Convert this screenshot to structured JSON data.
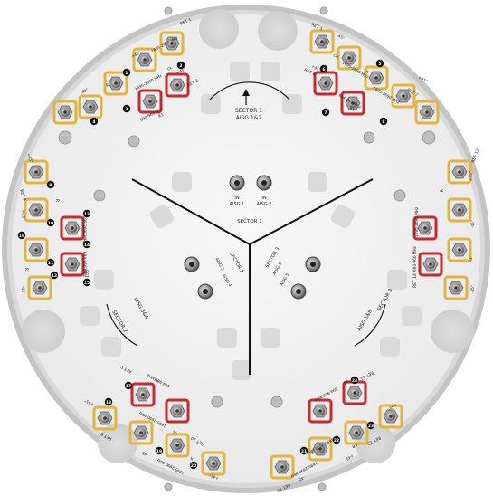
{
  "sector_1": {
    "label": "SECTOR 1",
    "aisg_label": "AISG 1&2",
    "ports": [
      {
        "port": "IN",
        "name": "AISG 1"
      },
      {
        "port": "IN",
        "name": "AISG 2"
      }
    ],
    "top_left_ports": [
      {
        "ret": "RET 1",
        "polarization": "+45°",
        "band": "1695-2690 MHz",
        "mark": "CL"
      },
      {
        "ret": "RET 2",
        "polarization": "-45°",
        "band": "1695-2690 MHz",
        "mark": "R"
      },
      {
        "ret": "RET 3",
        "polarization": "-45°",
        "band": "694-960 MHz",
        "mark": "R1"
      }
    ],
    "top_right_ports": [
      {
        "ret": "RET 5",
        "polarization": "-45°",
        "band": "1695-2690 MHz",
        "mark": "CR"
      },
      {
        "ret": "RET 6",
        "polarization": "+45°",
        "band": "1695-2690 MHz",
        "mark": "R"
      },
      {
        "ret": "RET 7",
        "polarization": "+45°",
        "band": "694-960 MHz",
        "mark": "R1"
      }
    ],
    "numbers": [
      "1",
      "2",
      "3",
      "4",
      "5",
      "6",
      "7",
      "8"
    ]
  },
  "sector_2": {
    "label": "SECTOR 2",
    "aisg_label": "AISG 3&4",
    "ports": [
      {
        "port": "IN",
        "name": "AISG 3"
      },
      {
        "port": "IN",
        "name": "AISG 4"
      }
    ],
    "side_ports": [
      {
        "ret": "RET 9",
        "polarization": "+45°",
        "band": "1695-2690 MHz",
        "mark": "CL"
      },
      {
        "ret": "RET 10",
        "polarization": "-45°",
        "band": "1695-2690 MHz",
        "mark": "R"
      },
      {
        "ret": "RET 11",
        "polarization": "+45°",
        "band": "694-960 MHz",
        "mark": "R1"
      }
    ],
    "numbers": [
      "9",
      "10",
      "11",
      "12",
      "13",
      "14",
      "15",
      "16"
    ]
  },
  "sector_3": {
    "label": "SECTOR 3",
    "aisg_label": "AISG 5&6",
    "ports": [
      {
        "port": "IN",
        "name": "AISG 5"
      },
      {
        "port": "IN",
        "name": "AISG 6"
      }
    ],
    "side_ports": [
      {
        "ret": "RET 12",
        "polarization": "+45°",
        "band": "1695-2690 MHz",
        "mark": "CR"
      },
      {
        "ret": "RET 13",
        "polarization": "-45°",
        "band": "1695-2690 MHz",
        "mark": "R"
      },
      {
        "ret": "RET 14",
        "polarization": "-45°",
        "band": "694-960 MHz",
        "mark": "R1"
      }
    ],
    "numbers": [
      "17",
      "18",
      "19",
      "20",
      "21",
      "22",
      "23",
      "24"
    ]
  },
  "bottom_left_ports": [
    {
      "ret": "RET 8",
      "polarization": "+45°",
      "band": "1695-2690 MHz",
      "mark": "CL"
    },
    {
      "ret": "RET 9",
      "polarization": "-45°",
      "band": "694-960 MHz",
      "mark": "R1"
    },
    {
      "ret": "RET 10",
      "polarization": "+45°",
      "band": "1695-2690 MHz",
      "mark": "R"
    }
  ],
  "bottom_right_ports": [
    {
      "ret": "RET 11",
      "polarization": "+45°",
      "band": "694-960 MHz",
      "mark": "R1"
    },
    {
      "ret": "RET 12",
      "polarization": "-45°",
      "band": "1695-2690 MHz",
      "mark": "CR"
    },
    {
      "ret": "RET 13",
      "polarization": "+45°",
      "band": "1695-2690 MHz",
      "mark": "R"
    }
  ],
  "colors": {
    "plate": "#f2f2f2",
    "rim": "#b9b9b9",
    "ring": "#dcdcdc",
    "yellow_frame": "#e4b43a",
    "red_frame": "#c9282e",
    "connector": "#8a8a8a",
    "number_badge": "#111111",
    "divider": "#111111"
  }
}
